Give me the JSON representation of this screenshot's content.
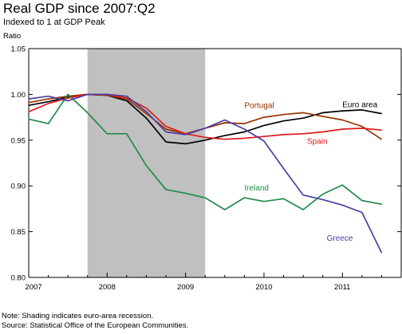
{
  "header": {
    "title": "Real GDP since 2007:Q2",
    "subtitle": "Indexed to 1 at GDP Peak"
  },
  "notes": {
    "note": "Note: Shading indicates euro-area recession.",
    "source": "Source: Statistical Office of the European Communities."
  },
  "chart_data": {
    "type": "line",
    "title": "Real GDP since 2007:Q2",
    "subtitle": "Indexed to 1 at GDP Peak",
    "xlabel": "",
    "ylabel": "Ratio",
    "xlim": [
      2007.0,
      2011.75
    ],
    "ylim": [
      0.8,
      1.05
    ],
    "x_ticks": [
      2007,
      2008,
      2009,
      2010,
      2011
    ],
    "y_ticks": [
      0.8,
      0.85,
      0.9,
      0.95,
      1.0,
      1.05
    ],
    "y_tick_labels": [
      "0.80",
      "0.85",
      "0.90",
      "0.95",
      "1.00",
      "1.05"
    ],
    "grid": false,
    "shading": {
      "label": "euro-area recession",
      "x_start": 2007.75,
      "x_end": 2009.25,
      "color": "#c0c0c0"
    },
    "x": [
      2007.0,
      2007.25,
      2007.5,
      2007.75,
      2008.0,
      2008.25,
      2008.5,
      2008.75,
      2009.0,
      2009.25,
      2009.5,
      2009.75,
      2010.0,
      2010.25,
      2010.5,
      2010.75,
      2011.0,
      2011.25,
      2011.5
    ],
    "series": [
      {
        "name": "Euro area",
        "color": "#000000",
        "values": [
          0.988,
          0.992,
          0.997,
          1.0,
          0.999,
          0.993,
          0.974,
          0.948,
          0.946,
          0.95,
          0.955,
          0.959,
          0.966,
          0.971,
          0.974,
          0.98,
          0.982,
          0.983,
          0.979
        ]
      },
      {
        "name": "Portugal",
        "color": "#993300",
        "values": [
          0.991,
          0.995,
          0.998,
          1.0,
          0.999,
          0.995,
          0.979,
          0.962,
          0.957,
          0.963,
          0.969,
          0.968,
          0.975,
          0.978,
          0.98,
          0.976,
          0.972,
          0.965,
          0.951
        ]
      },
      {
        "name": "Spain",
        "color": "#dd1c1c",
        "values": [
          0.981,
          0.99,
          0.996,
          1.0,
          1.0,
          0.996,
          0.985,
          0.965,
          0.957,
          0.953,
          0.951,
          0.952,
          0.954,
          0.956,
          0.957,
          0.959,
          0.962,
          0.963,
          0.961
        ]
      },
      {
        "name": "Ireland",
        "color": "#1f8c4a",
        "values": [
          0.973,
          0.968,
          1.0,
          0.98,
          0.957,
          0.957,
          0.922,
          0.896,
          0.892,
          0.887,
          0.874,
          0.887,
          0.883,
          0.886,
          0.874,
          0.891,
          0.901,
          0.884,
          0.88
        ]
      },
      {
        "name": "Greece",
        "color": "#4b3fa0",
        "values": [
          0.995,
          0.998,
          0.993,
          1.0,
          1.0,
          0.998,
          0.981,
          0.959,
          0.956,
          0.963,
          0.972,
          0.962,
          0.949,
          0.919,
          0.89,
          0.885,
          0.879,
          0.871,
          0.827
        ]
      }
    ],
    "labels": [
      {
        "series": "Euro area",
        "text": "Euro area",
        "x": 2011.0,
        "y": 0.986,
        "color": "#000000"
      },
      {
        "series": "Portugal",
        "text": "Portugal",
        "x": 2009.75,
        "y": 0.985,
        "color": "#993300"
      },
      {
        "series": "Spain",
        "text": "Spain",
        "x": 2010.55,
        "y": 0.946,
        "color": "#dd1c1c"
      },
      {
        "series": "Ireland",
        "text": "Ireland",
        "x": 2009.75,
        "y": 0.895,
        "color": "#1f8c4a"
      },
      {
        "series": "Greece",
        "text": "Greece",
        "x": 2010.8,
        "y": 0.84,
        "color": "#4b3fa0"
      }
    ]
  }
}
